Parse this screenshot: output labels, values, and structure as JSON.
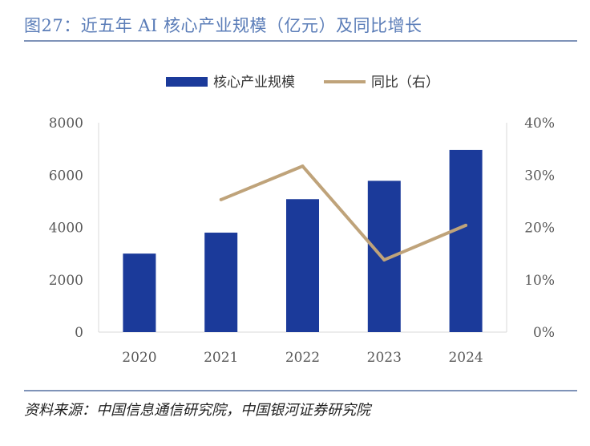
{
  "header": {
    "title": "图27：近五年 AI 核心产业规模（亿元）及同比增长"
  },
  "footer": {
    "source": "资料来源：中国信息通信研究院，中国银河证券研究院"
  },
  "colors": {
    "bar": "#1b3a9a",
    "line": "#bfa37a",
    "title": "#5b7db8",
    "rule": "#7f93b8"
  },
  "chart_data": {
    "type": "bar",
    "title": "近五年 AI 核心产业规模（亿元）及同比增长",
    "categories": [
      "2020",
      "2021",
      "2022",
      "2023",
      "2024"
    ],
    "series": [
      {
        "name": "核心产业规模",
        "type": "bar",
        "axis": "left",
        "values": [
          3000,
          3800,
          5080,
          5780,
          6960
        ]
      },
      {
        "name": "同比（右）",
        "type": "line",
        "axis": "right",
        "values": [
          null,
          25.3,
          31.7,
          13.8,
          20.4
        ]
      }
    ],
    "ylim": [
      0,
      8000
    ],
    "yticks": [
      "0",
      "2000",
      "4000",
      "6000",
      "8000"
    ],
    "y2lim": [
      0,
      40
    ],
    "y2ticks": [
      "0%",
      "10%",
      "20%",
      "30%",
      "40%"
    ],
    "legend": [
      "核心产业规模",
      "同比（右）"
    ],
    "legend_position": "top-center"
  }
}
